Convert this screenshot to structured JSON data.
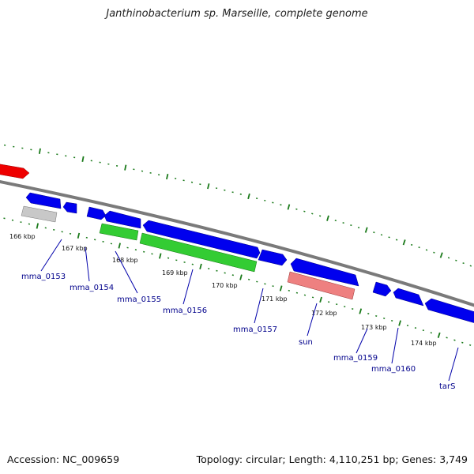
{
  "title": "Janthinobacterium sp. Marseille, complete genome",
  "footer": {
    "accession": "Accession: NC_009659",
    "stats": "Topology: circular; Length: 4,110,251 bp; Genes: 3,749"
  },
  "colors": {
    "backbone": "#808080",
    "tick": "#1a7a1a",
    "gene_blue": "#0000ee",
    "gene_green": "#33cc33",
    "gene_red": "#ee0000",
    "gene_pink": "#ee8080",
    "gene_gray": "#c0c0c0",
    "label": "#00008b"
  },
  "ticks": [
    {
      "label": "166 kbp"
    },
    {
      "label": "167 kbp"
    },
    {
      "label": "168 kbp"
    },
    {
      "label": "169 kbp"
    },
    {
      "label": "170 kbp"
    },
    {
      "label": "171 kbp"
    },
    {
      "label": "172 kbp"
    },
    {
      "label": "173 kbp"
    },
    {
      "label": "174 kbp"
    }
  ],
  "gene_labels": [
    {
      "name": "mma_0153"
    },
    {
      "name": "mma_0154"
    },
    {
      "name": "mma_0155"
    },
    {
      "name": "mma_0156"
    },
    {
      "name": "mma_0157"
    },
    {
      "name": "sun"
    },
    {
      "name": "mma_0159"
    },
    {
      "name": "mma_0160"
    },
    {
      "name": "tarS"
    }
  ]
}
